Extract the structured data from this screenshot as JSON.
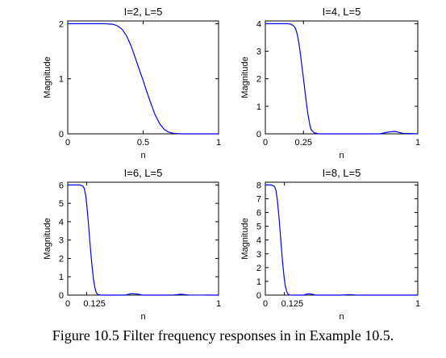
{
  "caption": "Figure 10.5 Filter frequency responses in in Example 10.5.",
  "line_color": "#0000ff",
  "chart_data": [
    {
      "type": "line",
      "title": "I=2, L=5",
      "xlabel": "n",
      "ylabel": "Magnitude",
      "xlim": [
        0,
        1
      ],
      "ylim": [
        0,
        2.05
      ],
      "xticks": [
        0,
        0.5,
        1
      ],
      "xtick_labels": [
        "0",
        "0.5",
        "1"
      ],
      "yticks": [
        0,
        1,
        2
      ],
      "ytick_labels": [
        "0",
        "1",
        "2"
      ],
      "series": [
        {
          "x": [
            0,
            0.1,
            0.2,
            0.25,
            0.3,
            0.33,
            0.36,
            0.39,
            0.42,
            0.45,
            0.48,
            0.5,
            0.52,
            0.55,
            0.58,
            0.61,
            0.64,
            0.67,
            0.7,
            0.75,
            0.8,
            0.9,
            1
          ],
          "y": [
            2,
            2,
            2,
            2,
            1.99,
            1.96,
            1.9,
            1.78,
            1.6,
            1.36,
            1.12,
            0.97,
            0.8,
            0.56,
            0.34,
            0.18,
            0.08,
            0.03,
            0.01,
            0,
            0,
            0,
            0
          ]
        }
      ]
    },
    {
      "type": "line",
      "title": "I=4, L=5",
      "xlabel": "n",
      "ylabel": "Magnitude",
      "xlim": [
        0,
        1
      ],
      "ylim": [
        0,
        4.1
      ],
      "xticks": [
        0,
        0.25,
        1
      ],
      "xtick_labels": [
        "0",
        "0.25",
        "1"
      ],
      "yticks": [
        0,
        1,
        2,
        3,
        4
      ],
      "ytick_labels": [
        "0",
        "1",
        "2",
        "3",
        "4"
      ],
      "series": [
        {
          "x": [
            0,
            0.1,
            0.15,
            0.17,
            0.19,
            0.2,
            0.21,
            0.22,
            0.23,
            0.24,
            0.25,
            0.26,
            0.27,
            0.28,
            0.29,
            0.3,
            0.32,
            0.35,
            0.5,
            0.75,
            0.8,
            0.85,
            0.9,
            1
          ],
          "y": [
            4,
            4,
            4,
            3.98,
            3.9,
            3.8,
            3.6,
            3.3,
            2.9,
            2.45,
            2.0,
            1.55,
            1.1,
            0.7,
            0.38,
            0.15,
            0.04,
            0,
            0,
            0,
            0.06,
            0.09,
            0.02,
            0
          ]
        }
      ]
    },
    {
      "type": "line",
      "title": "I=6, L=5",
      "xlabel": "n",
      "ylabel": "Magnitude",
      "xlim": [
        0,
        1
      ],
      "ylim": [
        0,
        6.15
      ],
      "xticks": [
        0,
        0.125,
        1
      ],
      "xtick_labels": [
        "0",
        "0.125",
        "1"
      ],
      "yticks": [
        0,
        1,
        2,
        3,
        4,
        5,
        6
      ],
      "ytick_labels": [
        "0",
        "1",
        "2",
        "3",
        "4",
        "5",
        "6"
      ],
      "series": [
        {
          "x": [
            0,
            0.08,
            0.1,
            0.11,
            0.12,
            0.13,
            0.14,
            0.15,
            0.16,
            0.17,
            0.18,
            0.19,
            0.2,
            0.22,
            0.25,
            0.38,
            0.42,
            0.46,
            0.5,
            0.7,
            0.75,
            0.8,
            1
          ],
          "y": [
            6,
            6,
            5.95,
            5.8,
            5.4,
            4.6,
            3.6,
            2.6,
            1.7,
            0.9,
            0.4,
            0.12,
            0.03,
            0,
            0,
            0,
            0.08,
            0.06,
            0,
            0,
            0.05,
            0.01,
            0
          ]
        }
      ]
    },
    {
      "type": "line",
      "title": "I=8, L=5",
      "xlabel": "n",
      "ylabel": "Magnitude",
      "xlim": [
        0,
        1
      ],
      "ylim": [
        0,
        8.2
      ],
      "xticks": [
        0,
        0.125,
        1
      ],
      "xtick_labels": [
        "0",
        "0.125",
        "1"
      ],
      "yticks": [
        0,
        1,
        2,
        3,
        4,
        5,
        6,
        7,
        8
      ],
      "ytick_labels": [
        "0",
        "1",
        "2",
        "3",
        "4",
        "5",
        "6",
        "7",
        "8"
      ],
      "series": [
        {
          "x": [
            0,
            0.04,
            0.06,
            0.07,
            0.08,
            0.09,
            0.1,
            0.11,
            0.12,
            0.13,
            0.14,
            0.15,
            0.16,
            0.18,
            0.25,
            0.28,
            0.3,
            0.33,
            0.5,
            0.55,
            0.6,
            1
          ],
          "y": [
            8,
            8,
            7.9,
            7.6,
            6.8,
            5.6,
            4.2,
            2.8,
            1.6,
            0.7,
            0.25,
            0.06,
            0.01,
            0,
            0,
            0.1,
            0.08,
            0,
            0,
            0.04,
            0,
            0
          ]
        }
      ]
    }
  ]
}
